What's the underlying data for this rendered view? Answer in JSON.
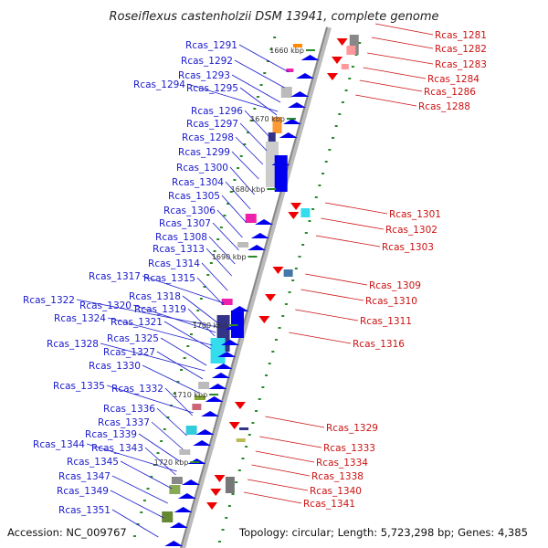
{
  "title": "Roseiflexus castenholzii DSM 13941, complete genome",
  "footer": {
    "accession": "Accession: NC_009767",
    "summary": "Topology: circular; Length: 5,723,298 bp; Genes: 4,385"
  },
  "colors": {
    "left_label": "#1a1acc",
    "right_label": "#cc1111",
    "left_arrow": "#0000ee",
    "right_arrow": "#ee0000",
    "axis": "#999999",
    "tick": "#2a8a2a"
  },
  "kbp_markers": [
    "1660 kbp",
    "1670 kbp",
    "1680 kbp",
    "1690 kbp",
    "1700 kbp",
    "1710 kbp",
    "1720 kbp"
  ],
  "left_genes": [
    "Rcas_1291",
    "Rcas_1292",
    "Rcas_1293",
    "Rcas_1294",
    "Rcas_1295",
    "Rcas_1296",
    "Rcas_1297",
    "Rcas_1298",
    "Rcas_1299",
    "Rcas_1300",
    "Rcas_1304",
    "Rcas_1305",
    "Rcas_1306",
    "Rcas_1307",
    "Rcas_1308",
    "Rcas_1313",
    "Rcas_1314",
    "Rcas_1315",
    "Rcas_1317",
    "Rcas_1318",
    "Rcas_1319",
    "Rcas_1320",
    "Rcas_1321",
    "Rcas_1322",
    "Rcas_1324",
    "Rcas_1325",
    "Rcas_1327",
    "Rcas_1328",
    "Rcas_1330",
    "Rcas_1332",
    "Rcas_1335",
    "Rcas_1336",
    "Rcas_1337",
    "Rcas_1339",
    "Rcas_1343",
    "Rcas_1344",
    "Rcas_1345",
    "Rcas_1347",
    "Rcas_1349",
    "Rcas_1351"
  ],
  "right_genes": [
    "Rcas_1281",
    "Rcas_1282",
    "Rcas_1283",
    "Rcas_1284",
    "Rcas_1286",
    "Rcas_1288",
    "Rcas_1301",
    "Rcas_1302",
    "Rcas_1303",
    "Rcas_1309",
    "Rcas_1310",
    "Rcas_1311",
    "Rcas_1316",
    "Rcas_1329",
    "Rcas_1333",
    "Rcas_1334",
    "Rcas_1338",
    "Rcas_1340",
    "Rcas_1341"
  ]
}
